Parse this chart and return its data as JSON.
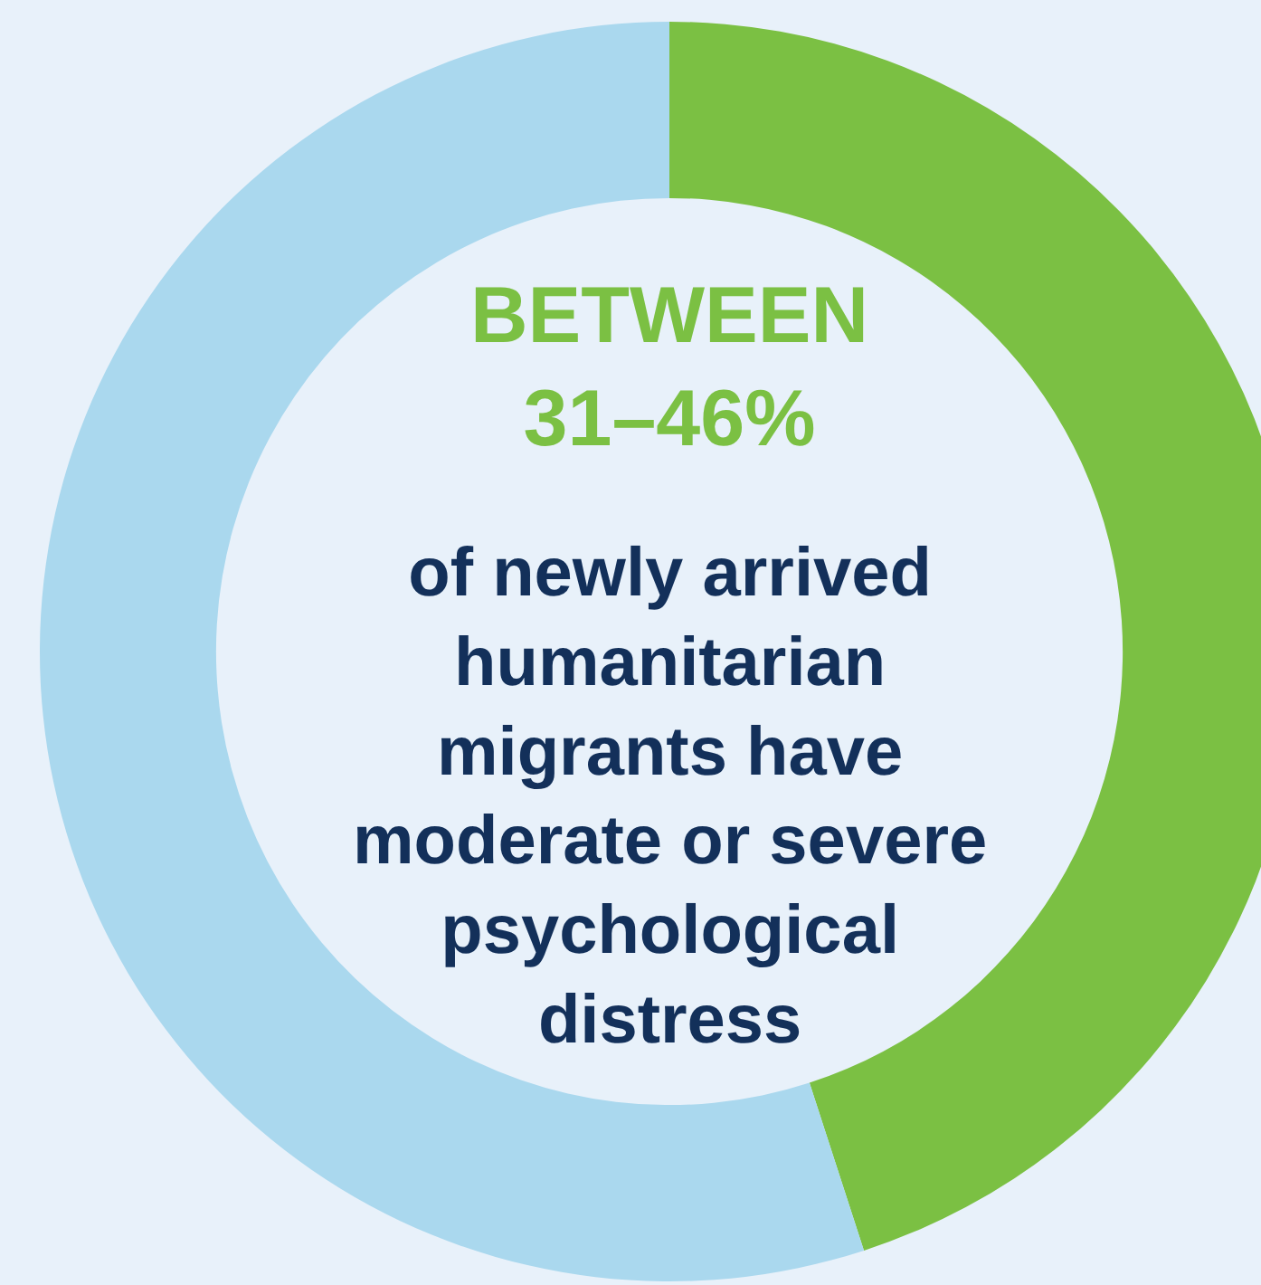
{
  "chart_data": {
    "type": "donut",
    "categories": [
      null,
      null
    ],
    "values": [
      45,
      55
    ],
    "colors": [
      "#7bc043",
      "#aad8ee"
    ],
    "annotations": [
      "BETWEEN\n31–46%",
      "of newly arrived\nhumanitarian\nmigrants have\nmoderate or severe\npsychological\ndistress"
    ],
    "legend": false
  }
}
